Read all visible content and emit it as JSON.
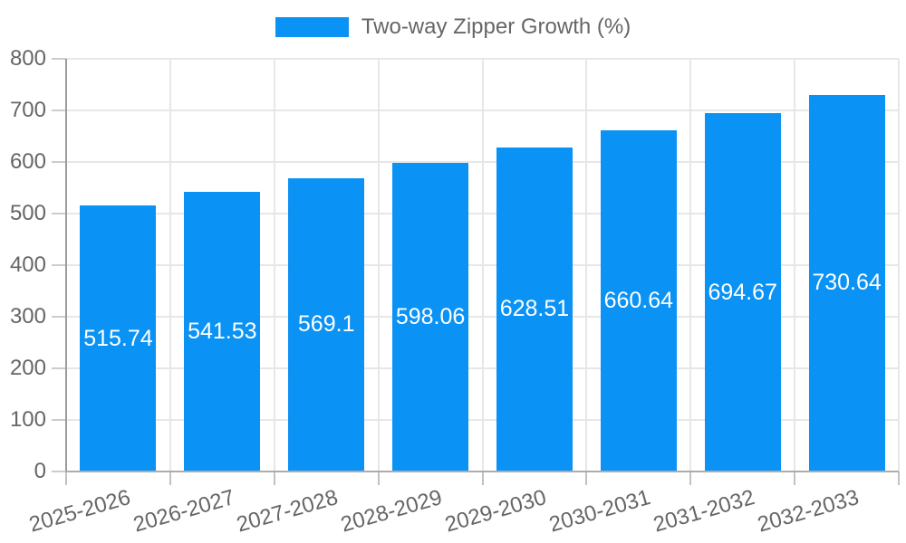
{
  "legend": {
    "items": [
      {
        "label": "Two-way Zipper Growth (%)",
        "color": "#0b92f5"
      }
    ]
  },
  "chart_data": {
    "type": "bar",
    "title": "",
    "xlabel": "",
    "ylabel": "",
    "categories": [
      "2025-2026",
      "2026-2027",
      "2027-2028",
      "2028-2029",
      "2029-2030",
      "2030-2031",
      "2031-2032",
      "2032-2033"
    ],
    "series": [
      {
        "name": "Two-way Zipper Growth (%)",
        "color": "#0b92f5",
        "values": [
          515.74,
          541.53,
          569.1,
          598.06,
          628.51,
          660.64,
          694.67,
          730.64
        ],
        "value_labels": [
          "515.74",
          "541.53",
          "569.1",
          "598.06",
          "628.51",
          "660.64",
          "694.67",
          "730.64"
        ]
      }
    ],
    "ylim": [
      0,
      800
    ],
    "yticks": [
      0,
      100,
      200,
      300,
      400,
      500,
      600,
      700,
      800
    ],
    "grid": true,
    "legend_position": "top"
  },
  "colors": {
    "bar": "#0b92f5",
    "grid": "#e7e7e7",
    "axis": "#9c9c9c",
    "tick_text": "#666666",
    "value_text": "#ffffff",
    "background": "#ffffff"
  }
}
